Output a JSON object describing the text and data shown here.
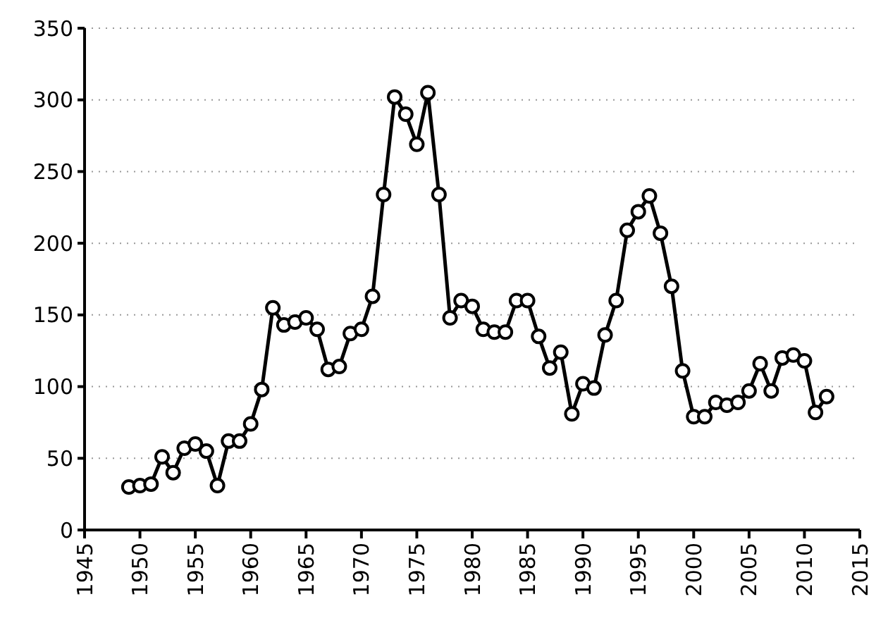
{
  "chart_data": {
    "type": "line",
    "x": [
      1949,
      1950,
      1951,
      1952,
      1953,
      1954,
      1955,
      1956,
      1957,
      1958,
      1959,
      1960,
      1961,
      1962,
      1963,
      1964,
      1965,
      1966,
      1967,
      1968,
      1969,
      1970,
      1971,
      1972,
      1973,
      1974,
      1975,
      1976,
      1977,
      1978,
      1979,
      1980,
      1981,
      1982,
      1983,
      1984,
      1985,
      1986,
      1987,
      1988,
      1989,
      1990,
      1991,
      1992,
      1993,
      1994,
      1995,
      1996,
      1997,
      1998,
      1999,
      2000,
      2001,
      2002,
      2003,
      2004,
      2005,
      2006,
      2007,
      2008,
      2009,
      2010,
      2011,
      2012
    ],
    "series": [
      {
        "color": "#000000",
        "values": [
          30,
          31,
          32,
          51,
          40,
          57,
          60,
          55,
          31,
          62,
          62,
          74,
          98,
          155,
          143,
          145,
          148,
          140,
          112,
          114,
          137,
          140,
          163,
          234,
          302,
          290,
          269,
          305,
          234,
          148,
          160,
          156,
          140,
          138,
          138,
          160,
          160,
          135,
          113,
          124,
          81,
          102,
          99,
          136,
          160,
          209,
          222,
          233,
          207,
          170,
          111,
          79,
          79,
          89,
          87,
          89,
          97,
          116,
          97,
          120,
          122,
          118,
          82,
          93
        ]
      }
    ],
    "xlim": [
      1945,
      2015
    ],
    "xticks": [
      1945,
      1950,
      1955,
      1960,
      1965,
      1970,
      1975,
      1980,
      1985,
      1990,
      1995,
      2000,
      2005,
      2010,
      2015
    ],
    "ylim": [
      0,
      350
    ],
    "yticks": [
      0,
      50,
      100,
      150,
      200,
      250,
      300,
      350
    ],
    "grid": "y",
    "marker": "circle",
    "line_style": "solid"
  }
}
